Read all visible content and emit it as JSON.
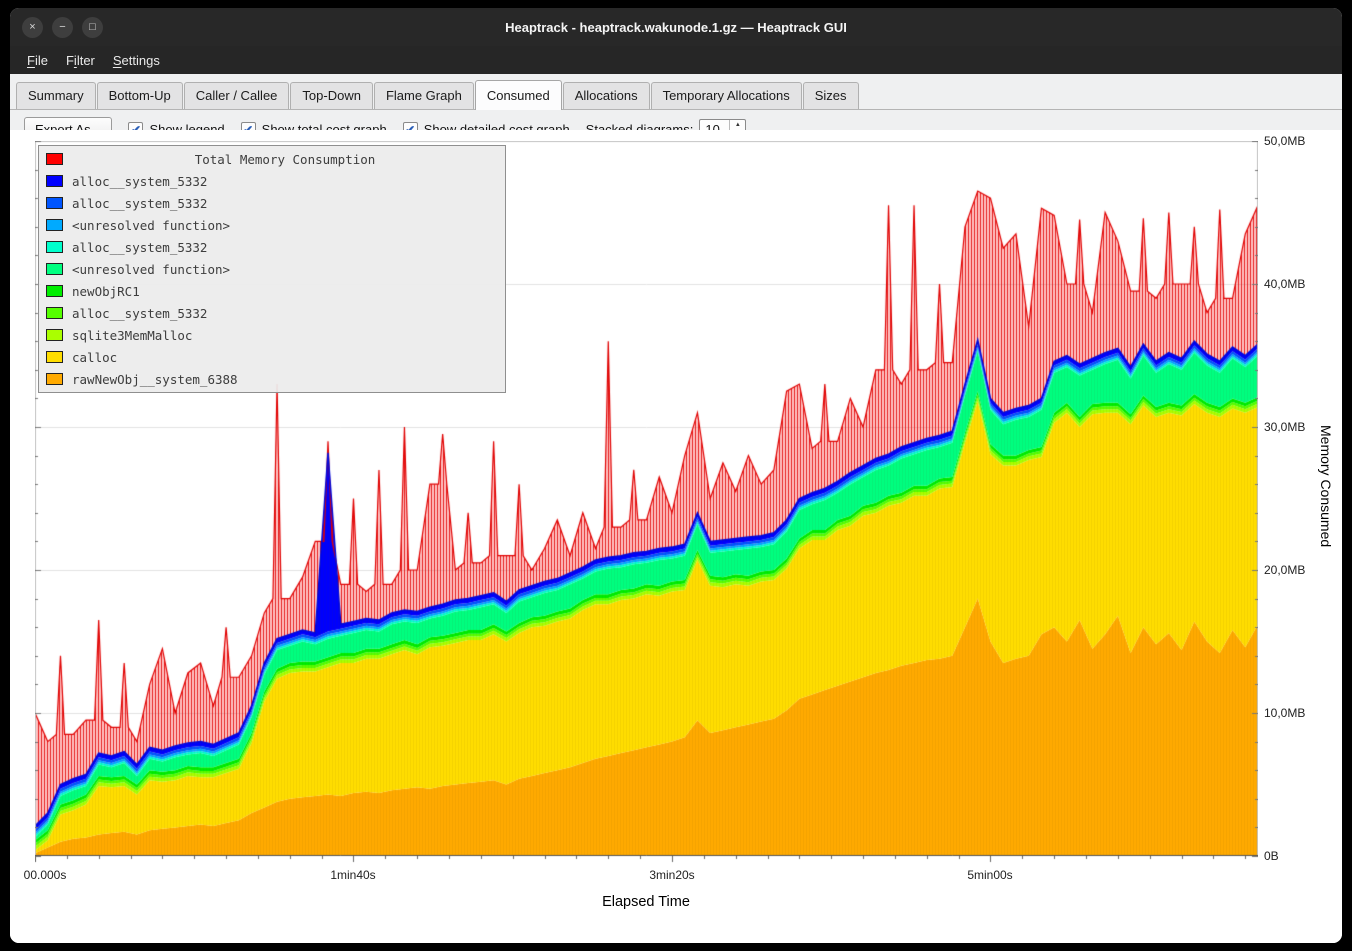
{
  "window": {
    "title": "Heaptrack - heaptrack.wakunode.1.gz — Heaptrack GUI",
    "controls": {
      "close": "×",
      "minimize": "−",
      "maximize": "□"
    }
  },
  "icons": {
    "check": "✔",
    "spin_up": "▲",
    "spin_down": "▼"
  },
  "menu": {
    "items": [
      {
        "pre": "",
        "key": "F",
        "post": "ile"
      },
      {
        "pre": "F",
        "key": "i",
        "post": "lter"
      },
      {
        "pre": "",
        "key": "S",
        "post": "ettings"
      }
    ]
  },
  "tabs": {
    "items": [
      "Summary",
      "Bottom-Up",
      "Caller / Callee",
      "Top-Down",
      "Flame Graph",
      "Consumed",
      "Allocations",
      "Temporary Allocations",
      "Sizes"
    ],
    "active": "Consumed"
  },
  "toolbar": {
    "export_label": "Export As...",
    "checkboxes": [
      {
        "label": "Show legend",
        "checked": true
      },
      {
        "label": "Show total cost graph",
        "checked": true
      },
      {
        "label": "Show detailed cost graph",
        "checked": true
      }
    ],
    "stacked_label": "Stacked diagrams:",
    "stacked_value": "10"
  },
  "legend": {
    "title": "Total Memory Consumption",
    "title_color": "#ff0000",
    "items": [
      {
        "label": "alloc__system_5332",
        "color": "#0000ff"
      },
      {
        "label": "alloc__system_5332",
        "color": "#0055ff"
      },
      {
        "label": "<unresolved function>",
        "color": "#00aaff"
      },
      {
        "label": "alloc__system_5332",
        "color": "#00ffcc"
      },
      {
        "label": "<unresolved function>",
        "color": "#00ff80"
      },
      {
        "label": "newObjRC1",
        "color": "#00ee00"
      },
      {
        "label": "alloc__system_5332",
        "color": "#55ff00"
      },
      {
        "label": "sqlite3MemMalloc",
        "color": "#aaff00"
      },
      {
        "label": "calloc",
        "color": "#ffdd00"
      },
      {
        "label": "rawNewObj__system_6388",
        "color": "#ffaa00"
      }
    ]
  },
  "chart_data": {
    "type": "area",
    "stacked": true,
    "title": "Total Memory Consumption",
    "xlabel": "Elapsed Time",
    "ylabel": "Memory Consumed",
    "xlim": [
      0,
      384
    ],
    "ylim_mb": [
      0,
      50
    ],
    "x_ticks": [
      {
        "t": 0,
        "label": "00.000s"
      },
      {
        "t": 100,
        "label": "1min40s"
      },
      {
        "t": 200,
        "label": "3min20s"
      },
      {
        "t": 300,
        "label": "5min00s"
      }
    ],
    "y_ticks": [
      {
        "mb": 0,
        "label": "0B"
      },
      {
        "mb": 10,
        "label": "10,0MB"
      },
      {
        "mb": 20,
        "label": "20,0MB"
      },
      {
        "mb": 30,
        "label": "30,0MB"
      },
      {
        "mb": 40,
        "label": "40,0MB"
      },
      {
        "mb": 50,
        "label": "50,0MB"
      }
    ],
    "x": [
      0,
      4,
      8,
      12,
      16,
      20,
      24,
      28,
      32,
      36,
      40,
      44,
      48,
      52,
      56,
      60,
      64,
      68,
      72,
      76,
      80,
      84,
      88,
      92,
      96,
      100,
      104,
      108,
      112,
      116,
      120,
      124,
      128,
      132,
      136,
      140,
      144,
      148,
      152,
      156,
      160,
      164,
      168,
      172,
      176,
      180,
      184,
      188,
      192,
      196,
      200,
      204,
      208,
      212,
      216,
      220,
      224,
      228,
      232,
      236,
      240,
      244,
      248,
      252,
      256,
      260,
      264,
      268,
      272,
      276,
      280,
      284,
      288,
      292,
      296,
      300,
      304,
      308,
      312,
      316,
      320,
      324,
      328,
      332,
      336,
      340,
      344,
      348,
      352,
      356,
      360,
      364,
      368,
      372,
      376,
      380,
      384
    ],
    "series": [
      {
        "name": "rawNewObj__system_6388",
        "color": "#ffaa00",
        "values": [
          0.2,
          0.6,
          1.0,
          1.2,
          1.3,
          1.5,
          1.6,
          1.7,
          1.5,
          1.8,
          1.9,
          2.0,
          2.1,
          2.2,
          2.1,
          2.3,
          2.5,
          3.0,
          3.4,
          3.8,
          4.0,
          4.1,
          4.2,
          4.3,
          4.2,
          4.4,
          4.5,
          4.4,
          4.6,
          4.7,
          4.8,
          4.7,
          4.9,
          5.0,
          5.1,
          5.2,
          5.3,
          5.0,
          5.4,
          5.6,
          5.8,
          6.0,
          6.2,
          6.5,
          6.8,
          7.0,
          7.2,
          7.4,
          7.6,
          7.8,
          8.0,
          8.3,
          9.5,
          8.6,
          8.8,
          9.0,
          9.2,
          9.4,
          9.6,
          10.2,
          11.0,
          11.3,
          11.6,
          11.9,
          12.2,
          12.5,
          12.8,
          13.0,
          13.3,
          13.5,
          13.7,
          13.8,
          14.0,
          16.0,
          18.0,
          15.0,
          13.5,
          13.8,
          14.0,
          15.5,
          16.0,
          15.0,
          16.5,
          14.5,
          15.5,
          16.8,
          14.2,
          16.0,
          14.8,
          15.6,
          14.4,
          16.4,
          15.0,
          14.2,
          15.8,
          14.6,
          16.2
        ]
      },
      {
        "name": "calloc",
        "color": "#ffdd00",
        "values": [
          0.2,
          0.5,
          1.9,
          2.0,
          2.3,
          3.4,
          3.2,
          3.2,
          2.8,
          3.5,
          3.3,
          3.3,
          3.5,
          3.3,
          3.4,
          3.5,
          3.6,
          4.9,
          7.4,
          8.6,
          8.8,
          8.8,
          8.7,
          8.9,
          9.3,
          9.1,
          9.3,
          9.4,
          9.5,
          9.7,
          9.3,
          9.9,
          9.8,
          9.9,
          10.0,
          9.9,
          10.2,
          10.0,
          10.2,
          10.4,
          10.3,
          10.4,
          10.4,
          10.7,
          10.8,
          10.6,
          10.7,
          10.6,
          10.7,
          10.4,
          10.5,
          10.3,
          11.2,
          10.3,
          10.0,
          10.0,
          9.7,
          9.8,
          9.7,
          9.9,
          10.5,
          10.8,
          10.5,
          10.9,
          10.9,
          11.3,
          11.2,
          11.5,
          11.4,
          11.7,
          11.5,
          11.9,
          11.8,
          12.9,
          13.8,
          13.1,
          13.8,
          13.5,
          13.7,
          12.4,
          14.3,
          16.0,
          13.5,
          16.4,
          15.5,
          14.2,
          16.0,
          15.5,
          15.9,
          15.4,
          16.4,
          15.2,
          16.0,
          16.5,
          15.5,
          16.4,
          15.2
        ]
      },
      {
        "name": "sqlite3MemMalloc",
        "color": "#aaff00",
        "const": 0.25
      },
      {
        "name": "alloc__system_5332",
        "color": "#55ff00",
        "const": 0.2
      },
      {
        "name": "newObjRC1",
        "color": "#00ee00",
        "const": 0.25
      },
      {
        "name": "<unresolved function>",
        "color": "#00ff80",
        "values": [
          0.2,
          0.4,
          0.6,
          0.7,
          0.6,
          0.8,
          0.7,
          0.9,
          0.6,
          0.8,
          0.7,
          0.9,
          0.8,
          1.0,
          0.8,
          0.9,
          1.0,
          1.1,
          1.2,
          1.3,
          1.2,
          1.4,
          1.2,
          1.3,
          1.2,
          1.4,
          1.3,
          1.2,
          1.4,
          1.3,
          1.5,
          1.3,
          1.4,
          1.5,
          1.4,
          1.6,
          1.4,
          1.3,
          1.5,
          1.4,
          1.6,
          1.5,
          1.7,
          1.5,
          1.6,
          1.8,
          1.6,
          1.7,
          1.5,
          1.8,
          1.6,
          1.7,
          1.8,
          1.6,
          1.8,
          1.7,
          1.9,
          1.7,
          1.8,
          1.9,
          2.0,
          1.8,
          2.1,
          1.9,
          2.2,
          2.0,
          2.3,
          2.1,
          2.4,
          2.2,
          2.5,
          2.2,
          2.4,
          2.6,
          2.8,
          2.4,
          2.2,
          2.5,
          2.3,
          2.6,
          2.8,
          2.5,
          2.9,
          2.4,
          2.7,
          3.0,
          2.5,
          2.8,
          2.4,
          2.7,
          2.5,
          2.9,
          2.6,
          2.4,
          2.8,
          2.5,
          2.9
        ]
      },
      {
        "name": "alloc__system_5332",
        "color": "#00ffcc",
        "const": 0.15
      },
      {
        "name": "<unresolved function>",
        "color": "#00aaff",
        "const": 0.15
      },
      {
        "name": "alloc__system_5332",
        "color": "#0055ff",
        "const": 0.2
      },
      {
        "name": "alloc__system_5332",
        "color": "#0000ff",
        "const": 0.3,
        "spikes": {
          "23": 12.5
        }
      }
    ],
    "total": {
      "name": "Total Memory Consumption",
      "color": "#ff0000",
      "values": [
        10.0,
        8.0,
        14.0,
        8.5,
        9.5,
        16.5,
        9.0,
        13.5,
        8.0,
        12.0,
        14.5,
        10.0,
        12.8,
        13.5,
        10.5,
        16.0,
        12.5,
        14.0,
        17.0,
        33.0,
        18.0,
        19.5,
        22.0,
        29.0,
        19.0,
        25.0,
        18.5,
        27.0,
        19.0,
        30.0,
        20.0,
        26.0,
        29.5,
        20.0,
        24.0,
        20.5,
        29.0,
        21.0,
        26.0,
        20.0,
        21.5,
        23.5,
        21.0,
        24.0,
        21.5,
        36.0,
        23.0,
        27.0,
        23.5,
        26.5,
        24.0,
        28.0,
        31.0,
        25.0,
        27.5,
        25.5,
        28.0,
        26.0,
        27.0,
        32.5,
        33.0,
        28.5,
        33.0,
        29.0,
        32.0,
        30.0,
        34.0,
        45.5,
        33.0,
        45.5,
        34.0,
        40.0,
        34.5,
        44.0,
        46.5,
        46.0,
        42.5,
        43.5,
        37.0,
        45.3,
        44.8,
        40.0,
        44.5,
        38.0,
        45.0,
        43.0,
        39.5,
        44.6,
        39.0,
        45.0,
        40.0,
        44.0,
        38.0,
        45.2,
        39.0,
        43.5,
        45.5
      ]
    }
  }
}
